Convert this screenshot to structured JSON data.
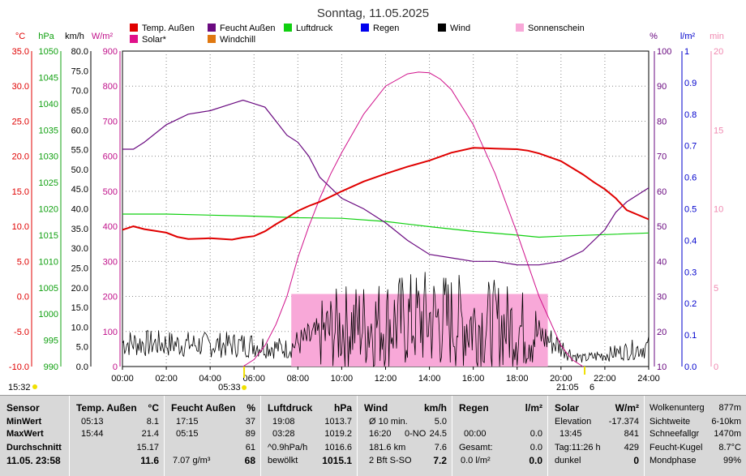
{
  "chart_data": {
    "type": "line",
    "title": "Sonntag, 11.05.2025",
    "legend": [
      {
        "label": "Temp. Außen",
        "color": "#e00000"
      },
      {
        "label": "Feucht Außen",
        "color": "#6a0a80"
      },
      {
        "label": "Luftdruck",
        "color": "#10d010"
      },
      {
        "label": "Regen",
        "color": "#0000ee"
      },
      {
        "label": "Wind",
        "color": "#000000"
      },
      {
        "label": "Sonnenschein",
        "color": "#f8a8d8"
      },
      {
        "label": "Solar*",
        "color": "#e0108a"
      },
      {
        "label": "Windchill",
        "color": "#e07810"
      }
    ],
    "axes": {
      "temp": {
        "unit": "°C",
        "ticks": [
          "35.0",
          "30.0",
          "25.0",
          "20.0",
          "15.0",
          "10.0",
          "5.0",
          "0.0",
          "-5.0",
          "-10.0"
        ],
        "color": "#e00000",
        "range": [
          -10,
          35
        ]
      },
      "pressure": {
        "unit": "hPa",
        "ticks": [
          "1050",
          "1045",
          "1040",
          "1035",
          "1030",
          "1025",
          "1020",
          "1015",
          "1010",
          "1005",
          "1000",
          "995",
          "990"
        ],
        "color": "#10a010",
        "range": [
          990,
          1050
        ]
      },
      "wind": {
        "unit": "km/h",
        "ticks": [
          "80.0",
          "75.0",
          "70.0",
          "65.0",
          "60.0",
          "55.0",
          "50.0",
          "45.0",
          "40.0",
          "35.0",
          "30.0",
          "25.0",
          "20.0",
          "15.0",
          "10.0",
          "5.0",
          "0.0"
        ],
        "color": "#000000",
        "range": [
          0,
          80
        ]
      },
      "solar": {
        "unit": "W/m²",
        "ticks": [
          "900",
          "800",
          "700",
          "600",
          "500",
          "400",
          "300",
          "200",
          "100",
          "0"
        ],
        "color": "#c0108a",
        "range": [
          0,
          900
        ]
      },
      "humidity": {
        "unit": "%",
        "ticks": [
          "100",
          "90",
          "80",
          "70",
          "60",
          "50",
          "40",
          "30",
          "20",
          "10"
        ],
        "color": "#6a0a80",
        "range": [
          10,
          100
        ]
      },
      "rain": {
        "unit": "l/m²",
        "ticks": [
          "1",
          "0.9",
          "0.8",
          "0.7",
          "0.6",
          "0.5",
          "0.4",
          "0.3",
          "0.2",
          "0.1",
          "0.0"
        ],
        "color": "#0000cc",
        "range": [
          0,
          1
        ]
      },
      "sunshine": {
        "unit": "min",
        "ticks": [
          "20",
          "15",
          "10",
          "5",
          "0"
        ],
        "color": "#f088b0",
        "range": [
          0,
          20
        ]
      }
    },
    "x_ticks": [
      "00:00",
      "02:00",
      "04:00",
      "06:00",
      "08:00",
      "10:00",
      "12:00",
      "14:00",
      "16:00",
      "18:00",
      "20:00",
      "22:00",
      "24:00"
    ],
    "sunrise_labels": {
      "left_time": "15:32",
      "sunrise": "05:33",
      "sunset": "21:05",
      "sunset_extra": "6"
    },
    "series": [
      {
        "name": "Temp. Außen",
        "axis": "temp",
        "x": [
          0,
          0.5,
          1,
          2,
          2.5,
          3,
          4,
          5,
          5.5,
          6,
          6.5,
          7,
          7.5,
          8,
          8.5,
          9,
          10,
          11,
          12,
          13,
          14,
          15,
          16,
          17,
          18,
          18.5,
          19,
          20,
          21,
          21.5,
          22,
          22.5,
          23,
          24
        ],
        "values": [
          9.5,
          10,
          9.6,
          9.1,
          8.5,
          8.2,
          8.3,
          8.1,
          8.4,
          8.6,
          9.3,
          10.3,
          11.2,
          12.2,
          12.9,
          13.5,
          15,
          16.4,
          17.5,
          18.5,
          19.4,
          20.5,
          21.2,
          21.1,
          21,
          20.8,
          20.4,
          19.3,
          17.4,
          16.3,
          15.3,
          14,
          12.3,
          11
        ]
      },
      {
        "name": "Feucht Außen",
        "axis": "humidity",
        "x": [
          0,
          0.5,
          1,
          2,
          3,
          4,
          5,
          5.5,
          6,
          6.5,
          7,
          7.5,
          8,
          8.5,
          9,
          10,
          11,
          12,
          13,
          14,
          15,
          16,
          17,
          18,
          19,
          20,
          21,
          22,
          22.5,
          23,
          24
        ],
        "values": [
          72,
          72,
          74,
          79,
          82,
          83,
          85,
          86,
          85,
          84,
          80,
          76,
          74,
          70,
          64,
          58,
          55,
          51,
          46,
          42,
          41,
          40,
          40,
          39,
          39,
          40,
          43,
          49,
          54,
          57,
          61
        ]
      },
      {
        "name": "Luftdruck",
        "axis": "pressure",
        "x": [
          0,
          2,
          4,
          6,
          8,
          10,
          12,
          14,
          16,
          18,
          19,
          20,
          22,
          24
        ],
        "values": [
          1019,
          1019,
          1018.8,
          1018.6,
          1018.3,
          1018.2,
          1017.6,
          1016.6,
          1015.7,
          1015,
          1014.6,
          1014.8,
          1015.1,
          1015.4
        ]
      },
      {
        "name": "Solar*",
        "axis": "solar",
        "x": [
          5.5,
          6,
          6.5,
          7,
          7.5,
          8,
          8.5,
          9,
          9.5,
          10,
          11,
          12,
          13,
          13.5,
          14,
          14.5,
          15,
          16,
          17,
          18,
          19,
          20,
          20.5,
          21
        ],
        "values": [
          0,
          20,
          60,
          120,
          200,
          310,
          400,
          480,
          550,
          610,
          720,
          800,
          835,
          840,
          838,
          820,
          790,
          690,
          550,
          380,
          200,
          60,
          20,
          0
        ]
      },
      {
        "name": "Sonnenschein",
        "axis": "sunshine",
        "x": [
          7.7,
          19.4
        ],
        "values": [
          4.6,
          4.6
        ]
      },
      {
        "name": "Wind",
        "axis": "wind",
        "x": [
          0,
          4,
          6,
          7.5,
          8,
          10,
          12,
          14,
          16,
          18,
          19,
          20,
          20.5,
          21,
          22,
          23,
          24
        ],
        "values": [
          6,
          5.5,
          5.5,
          4.5,
          6,
          10,
          11,
          12,
          11,
          10,
          8,
          5,
          3,
          2,
          3,
          4,
          5
        ]
      }
    ],
    "grid": true
  },
  "table": {
    "sensor": {
      "h": "Sensor",
      "r1": "MinWert",
      "r2": "MaxWert",
      "r3": "Durchschnitt",
      "r4": "11.05. 23:58"
    },
    "temp": {
      "h": "Temp. Außen",
      "u": "°C",
      "r1a": "05:13",
      "r1b": "8.1",
      "r2a": "15:44",
      "r2b": "21.4",
      "r3b": "15.17",
      "r4b": "11.6"
    },
    "feucht": {
      "h": "Feucht Außen",
      "u": "%",
      "r1a": "17:15",
      "r1b": "37",
      "r2a": "05:15",
      "r2b": "89",
      "r3b": "61",
      "r4a": "7.07 g/m³",
      "r4b": "68"
    },
    "luft": {
      "h": "Luftdruck",
      "u": "hPa",
      "r1a": "19:08",
      "r1b": "1013.7",
      "r2a": "03:28",
      "r2b": "1019.2",
      "r3a": "^0.9hPa/h",
      "r3b": "1016.6",
      "r4a": "bewölkt",
      "r4b": "1015.1"
    },
    "wind": {
      "h": "Wind",
      "u": "km/h",
      "r1a": "Ø 10 min.",
      "r1b": "5.0",
      "r2a": "16:20",
      "r2m": "0-NO",
      "r2b": "24.5",
      "r3a": "181.6 km",
      "r3b": "7.6",
      "r4a": "2 Bft S-SO",
      "r4b": "7.2"
    },
    "regen": {
      "h": "Regen",
      "u": "l/m²",
      "r2a": "00:00",
      "r2b": "0.0",
      "r3a": "Gesamt:",
      "r3b": "0.0",
      "r4a": "0.0 l/m²",
      "r4b": "0.0"
    },
    "solar": {
      "h": "Solar",
      "u": "W/m²",
      "r1a": "Elevation",
      "r1b": "-17.374",
      "r2a": "13:45",
      "r2b": "841",
      "r3a": "Tag:11:26 h",
      "r3b": "429",
      "r4a": "dunkel",
      "r4b": "0"
    },
    "misc": {
      "r0a": "Wolkenunterg",
      "r0b": "877m",
      "r1a": "Sichtweite",
      "r1b": "6-10km",
      "r2a": "Schneefallgr",
      "r2b": "1470m",
      "r3a": "Feucht-Kugel",
      "r3b": "8.7°C",
      "r4a": "Mondphase",
      "r4b": "99%"
    }
  }
}
